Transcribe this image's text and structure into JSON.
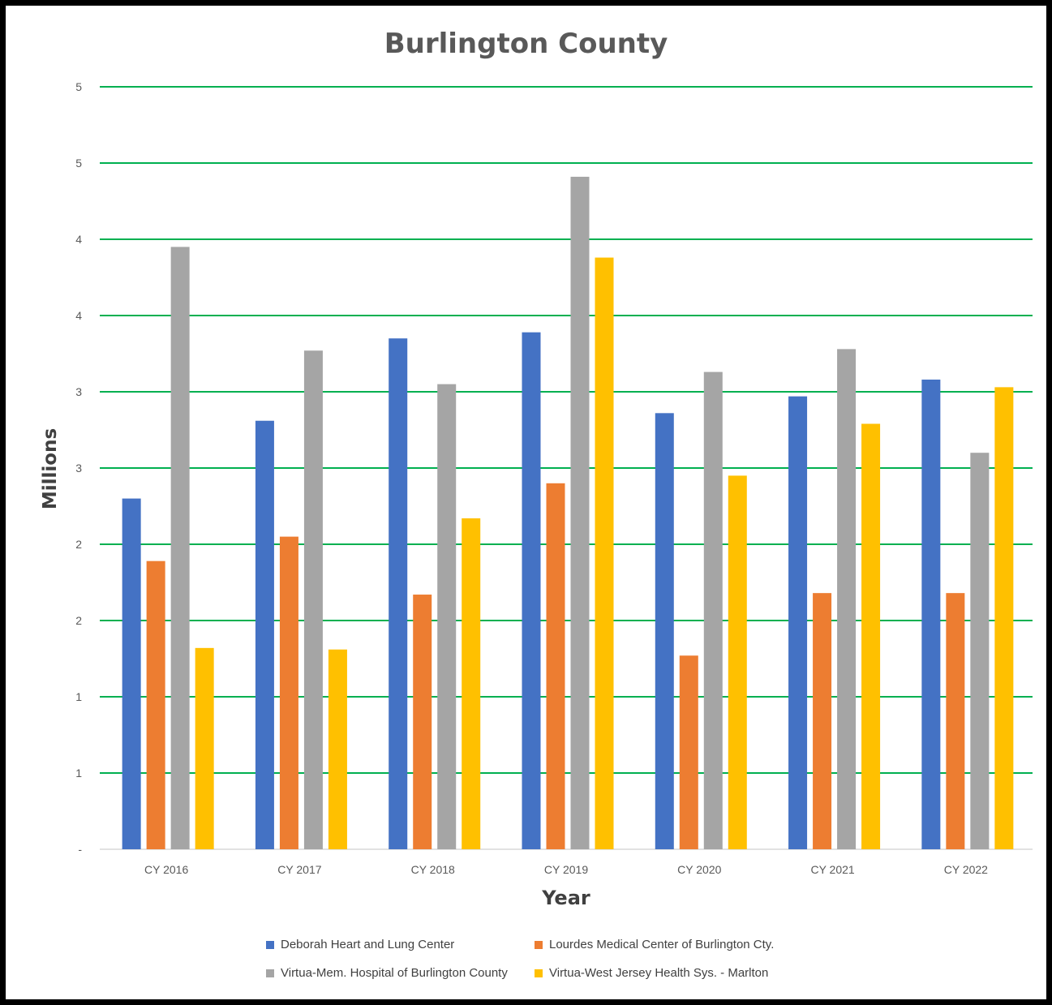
{
  "chart_data": {
    "type": "bar",
    "title": "Burlington County",
    "xlabel": "Year",
    "ylabel": "Millions",
    "categories": [
      "CY 2016",
      "CY 2017",
      "CY 2018",
      "CY 2019",
      "CY 2020",
      "CY 2021",
      "CY 2022"
    ],
    "y_ticks": [
      "-",
      "1",
      "1",
      "2",
      "2",
      "3",
      "3",
      "4",
      "4",
      "5",
      "5"
    ],
    "ylim": [
      0,
      5
    ],
    "grid": true,
    "grid_color": "#00B050",
    "legend_position": "bottom",
    "series": [
      {
        "name": "Deborah Heart and Lung Center",
        "color": "#4472C4",
        "values": [
          2.3,
          2.81,
          3.35,
          3.39,
          2.86,
          2.97,
          3.08
        ]
      },
      {
        "name": "Lourdes Medical Center of Burlington Cty.",
        "color": "#ED7D31",
        "values": [
          1.89,
          2.05,
          1.67,
          2.4,
          1.27,
          1.68,
          1.68
        ]
      },
      {
        "name": "Virtua-Mem. Hospital of Burlington County",
        "color": "#A5A5A5",
        "values": [
          3.95,
          3.27,
          3.05,
          4.41,
          3.13,
          3.28,
          2.6
        ]
      },
      {
        "name": "Virtua-West Jersey Health Sys. - Marlton",
        "color": "#FFC000",
        "values": [
          1.32,
          1.31,
          2.17,
          3.88,
          2.45,
          2.79,
          3.03
        ]
      }
    ]
  }
}
